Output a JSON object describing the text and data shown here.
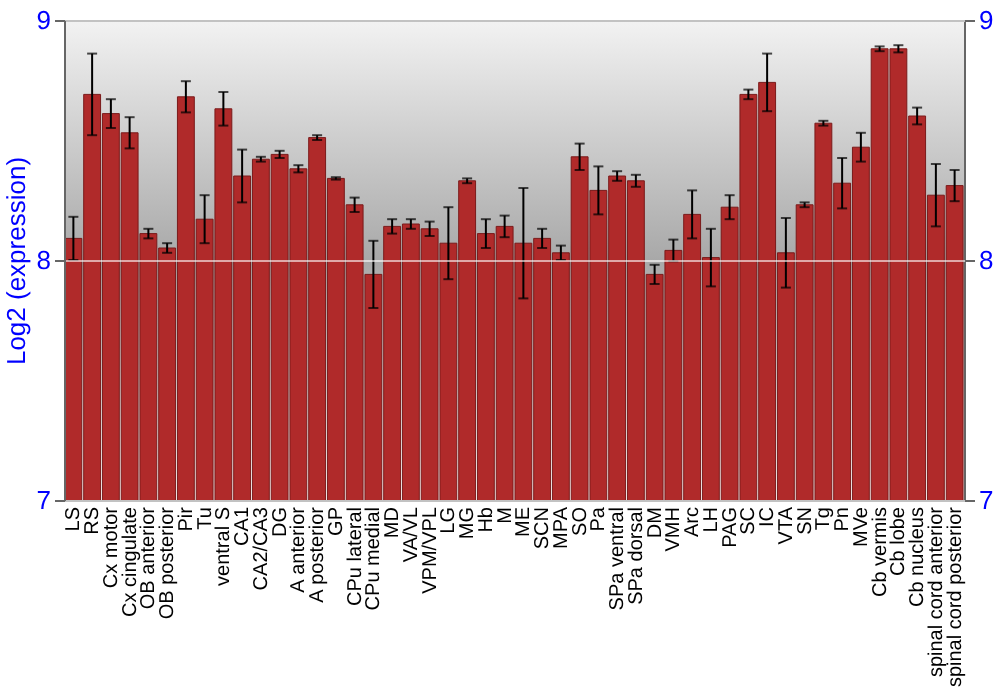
{
  "chart_data": {
    "type": "bar",
    "ylabel": "Log2 (expression)",
    "categories": [
      "LS",
      "RS",
      "Cx motor",
      "Cx cingulate",
      "OB anterior",
      "OB posterior",
      "Pir",
      "Tu",
      "ventral S",
      "CA1",
      "CA2/CA3",
      "DG",
      "A anterior",
      "A posterior",
      "GP",
      "CPu lateral",
      "CPu medial",
      "MD",
      "VA/VL",
      "VPM/VPL",
      "LG",
      "MG",
      "Hb",
      "M",
      "ME",
      "SCN",
      "MPA",
      "SO",
      "Pa",
      "SPa ventral",
      "SPa dorsal",
      "DM",
      "VMH",
      "Arc",
      "LH",
      "PAG",
      "SC",
      "IC",
      "VTA",
      "SN",
      "Tg",
      "Pn",
      "MVe",
      "Cb vermis",
      "Cb lobe",
      "Cb nucleus",
      "spinal cord anterior",
      "spinal cord posterior"
    ],
    "values": [
      8.09,
      8.69,
      8.61,
      8.53,
      8.11,
      8.05,
      8.68,
      8.17,
      8.63,
      8.35,
      8.42,
      8.44,
      8.38,
      8.51,
      8.34,
      8.23,
      7.94,
      8.14,
      8.15,
      8.13,
      8.07,
      8.33,
      8.11,
      8.14,
      8.07,
      8.09,
      8.03,
      8.43,
      8.29,
      8.35,
      8.33,
      7.94,
      8.04,
      8.19,
      8.01,
      8.22,
      8.69,
      8.74,
      8.03,
      8.23,
      8.57,
      8.32,
      8.47,
      8.88,
      8.88,
      8.6,
      8.27,
      8.31
    ],
    "errors": [
      0.09,
      0.17,
      0.06,
      0.065,
      0.02,
      0.02,
      0.065,
      0.1,
      0.07,
      0.11,
      0.01,
      0.015,
      0.015,
      0.01,
      0.005,
      0.03,
      0.14,
      0.03,
      0.02,
      0.03,
      0.15,
      0.01,
      0.06,
      0.045,
      0.23,
      0.04,
      0.03,
      0.055,
      0.1,
      0.02,
      0.025,
      0.04,
      0.045,
      0.1,
      0.12,
      0.05,
      0.02,
      0.12,
      0.145,
      0.01,
      0.01,
      0.105,
      0.06,
      0.01,
      0.015,
      0.035,
      0.13,
      0.065
    ],
    "color": "#b02a2a",
    "ylim": [
      7,
      9
    ],
    "yticks": [
      7,
      8,
      9
    ],
    "y2lim": [
      7,
      9
    ],
    "y2ticks": [
      7,
      8,
      9
    ],
    "grid": "y"
  }
}
